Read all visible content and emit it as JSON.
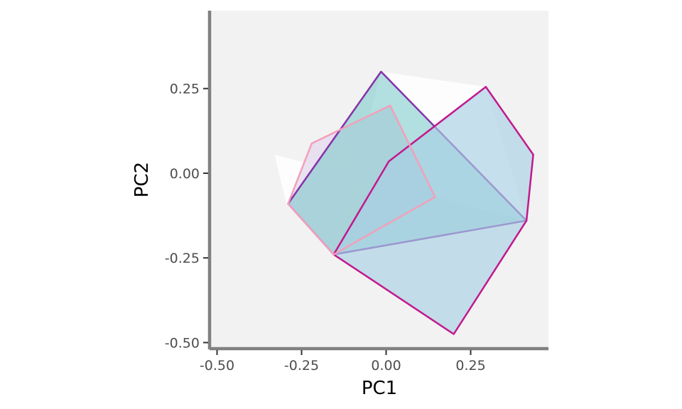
{
  "chart_data": {
    "type": "polygon",
    "xlabel": "PC1",
    "ylabel": "PC2",
    "xlim": [
      -0.52,
      0.48
    ],
    "ylim": [
      -0.52,
      0.48
    ],
    "x_ticks": [
      {
        "value": -0.5,
        "label": "-0.50"
      },
      {
        "value": -0.25,
        "label": "-0.25"
      },
      {
        "value": 0.0,
        "label": "0.00"
      },
      {
        "value": 0.25,
        "label": "0.25"
      }
    ],
    "y_ticks": [
      {
        "value": 0.25,
        "label": "0.25"
      },
      {
        "value": 0.0,
        "label": "0.00"
      },
      {
        "value": -0.25,
        "label": "-0.25"
      },
      {
        "value": -0.5,
        "label": "-0.50"
      }
    ],
    "grid": false,
    "legend": "none",
    "colors": {
      "panel_background": "#f2f2f2",
      "axis_line": "#808080",
      "tick_text": "#4d4d4d"
    },
    "series": [
      {
        "fill": "#ffffff",
        "fill_opacity": 0.85,
        "stroke": "none",
        "points": [
          [
            -0.33,
            0.055
          ],
          [
            -0.295,
            -0.09
          ],
          [
            -0.155,
            -0.24
          ],
          [
            -0.015,
            0.3
          ],
          [
            0.295,
            0.255
          ],
          [
            0.415,
            -0.14
          ]
        ]
      },
      {
        "fill": "#e6dcee",
        "fill_opacity": 0.85,
        "stroke": "none",
        "points": [
          [
            -0.22,
            0.088
          ],
          [
            0.012,
            0.2
          ],
          [
            0.145,
            -0.07
          ],
          [
            -0.155,
            -0.24
          ],
          [
            -0.29,
            -0.09
          ]
        ]
      },
      {
        "fill": "#75c7c7",
        "fill_opacity": 0.55,
        "stroke": "#7b1fa2",
        "stroke_opacity": 0.9,
        "points": [
          [
            -0.015,
            0.3
          ],
          [
            0.415,
            -0.14
          ],
          [
            -0.155,
            -0.24
          ],
          [
            -0.29,
            -0.09
          ]
        ]
      },
      {
        "fill": "#a8cfe3",
        "fill_opacity": 0.65,
        "stroke": "#c2188e",
        "stroke_opacity": 1,
        "points": [
          [
            0.295,
            0.255
          ],
          [
            0.435,
            0.055
          ],
          [
            0.415,
            -0.14
          ],
          [
            0.2,
            -0.475
          ],
          [
            -0.155,
            -0.24
          ],
          [
            0.008,
            0.035
          ]
        ]
      },
      {
        "fill": "none",
        "fill_opacity": 0,
        "stroke": "#f2a0bb",
        "stroke_opacity": 1,
        "points": [
          [
            -0.22,
            0.088
          ],
          [
            0.012,
            0.2
          ],
          [
            0.145,
            -0.07
          ],
          [
            -0.155,
            -0.24
          ],
          [
            -0.29,
            -0.09
          ]
        ]
      }
    ]
  }
}
